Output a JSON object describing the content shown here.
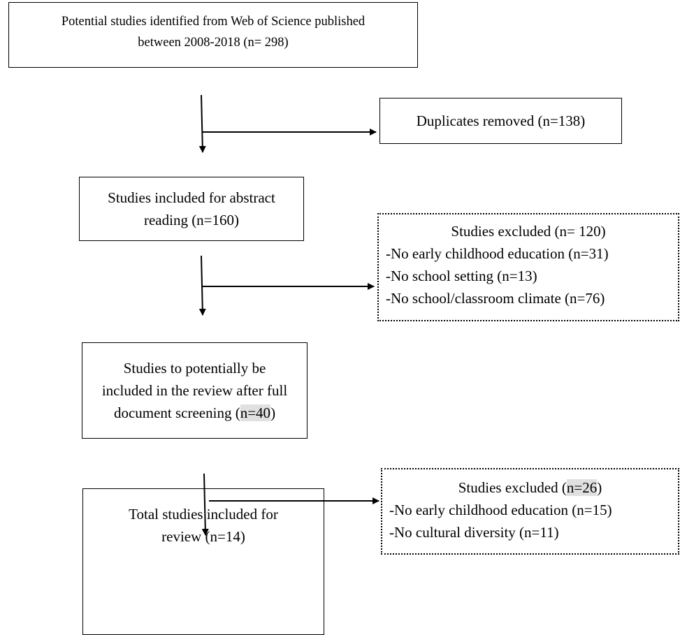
{
  "boxes": {
    "identified": {
      "line1": "Potential studies identified from Web of Science published",
      "line2": "between 2008-2018 (n= 298)"
    },
    "duplicates": {
      "text": "Duplicates removed (n=138)"
    },
    "abstract": {
      "line1": "Studies included for abstract",
      "line2": "reading (n=160)"
    },
    "excluded1": {
      "title": "Studies excluded (n= 120)",
      "items": [
        "-No early childhood education (n=31)",
        "-No school setting (n=13)",
        "-No school/classroom climate (n=76)"
      ]
    },
    "fulltext": {
      "line1": "Studies to potentially be",
      "line2": "included in the review after full",
      "line3_prefix": "document screening (",
      "line3_highlight": "n=40",
      "line3_suffix": ")"
    },
    "excluded2": {
      "title_prefix": "Studies excluded (",
      "title_highlight": "n=26",
      "title_suffix": ")",
      "items": [
        "-No early childhood education (n=15)",
        "-No cultural diversity (n=11)"
      ]
    },
    "included": {
      "line1": "Total studies included for",
      "line2": "review (n=14)"
    }
  }
}
